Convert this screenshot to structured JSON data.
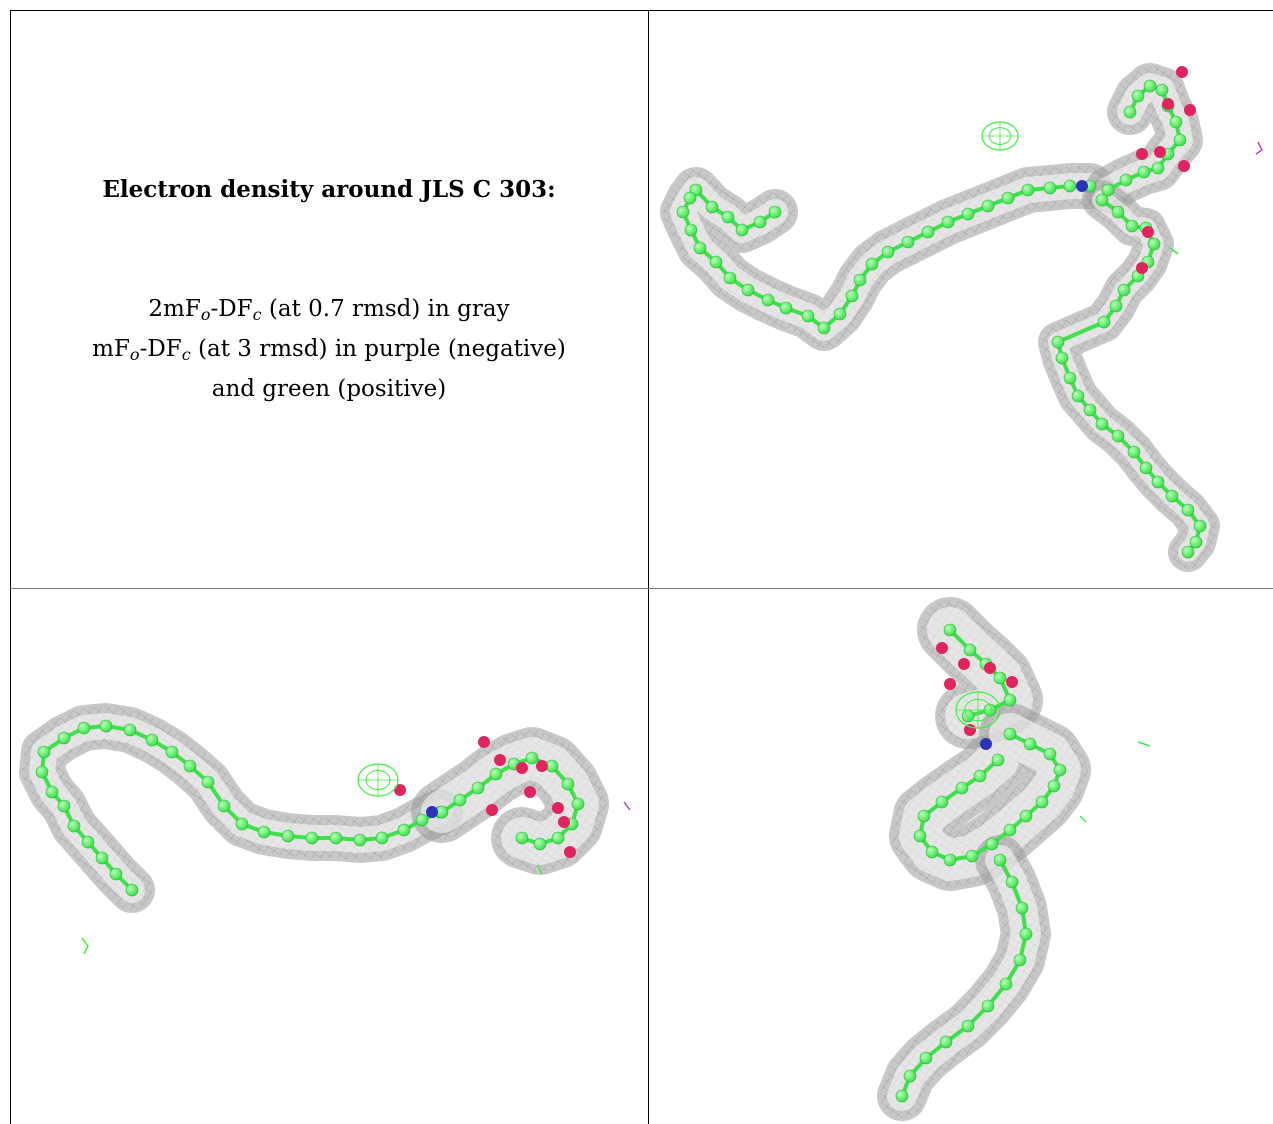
{
  "caption": {
    "title": "Electron density around JLS C 303:",
    "line1": {
      "prefix": "2mF",
      "sub1": "o",
      "mid": "-DF",
      "sub2": "c",
      "suffix": " (at 0.7 rmsd) in gray"
    },
    "line2": {
      "prefix": "mF",
      "sub1": "o",
      "mid": "-DF",
      "sub2": "c",
      "suffix": " (at 3 rmsd) in purple (negative)"
    },
    "line3": "and green (positive)"
  },
  "colors": {
    "mesh": "#9a9a9a",
    "carbon": "#3de24a",
    "oxygen": "#e0245e",
    "nitrogen": "#2d33b8",
    "positive_density": "#3bf03b",
    "negative_density": "#c040d0"
  }
}
